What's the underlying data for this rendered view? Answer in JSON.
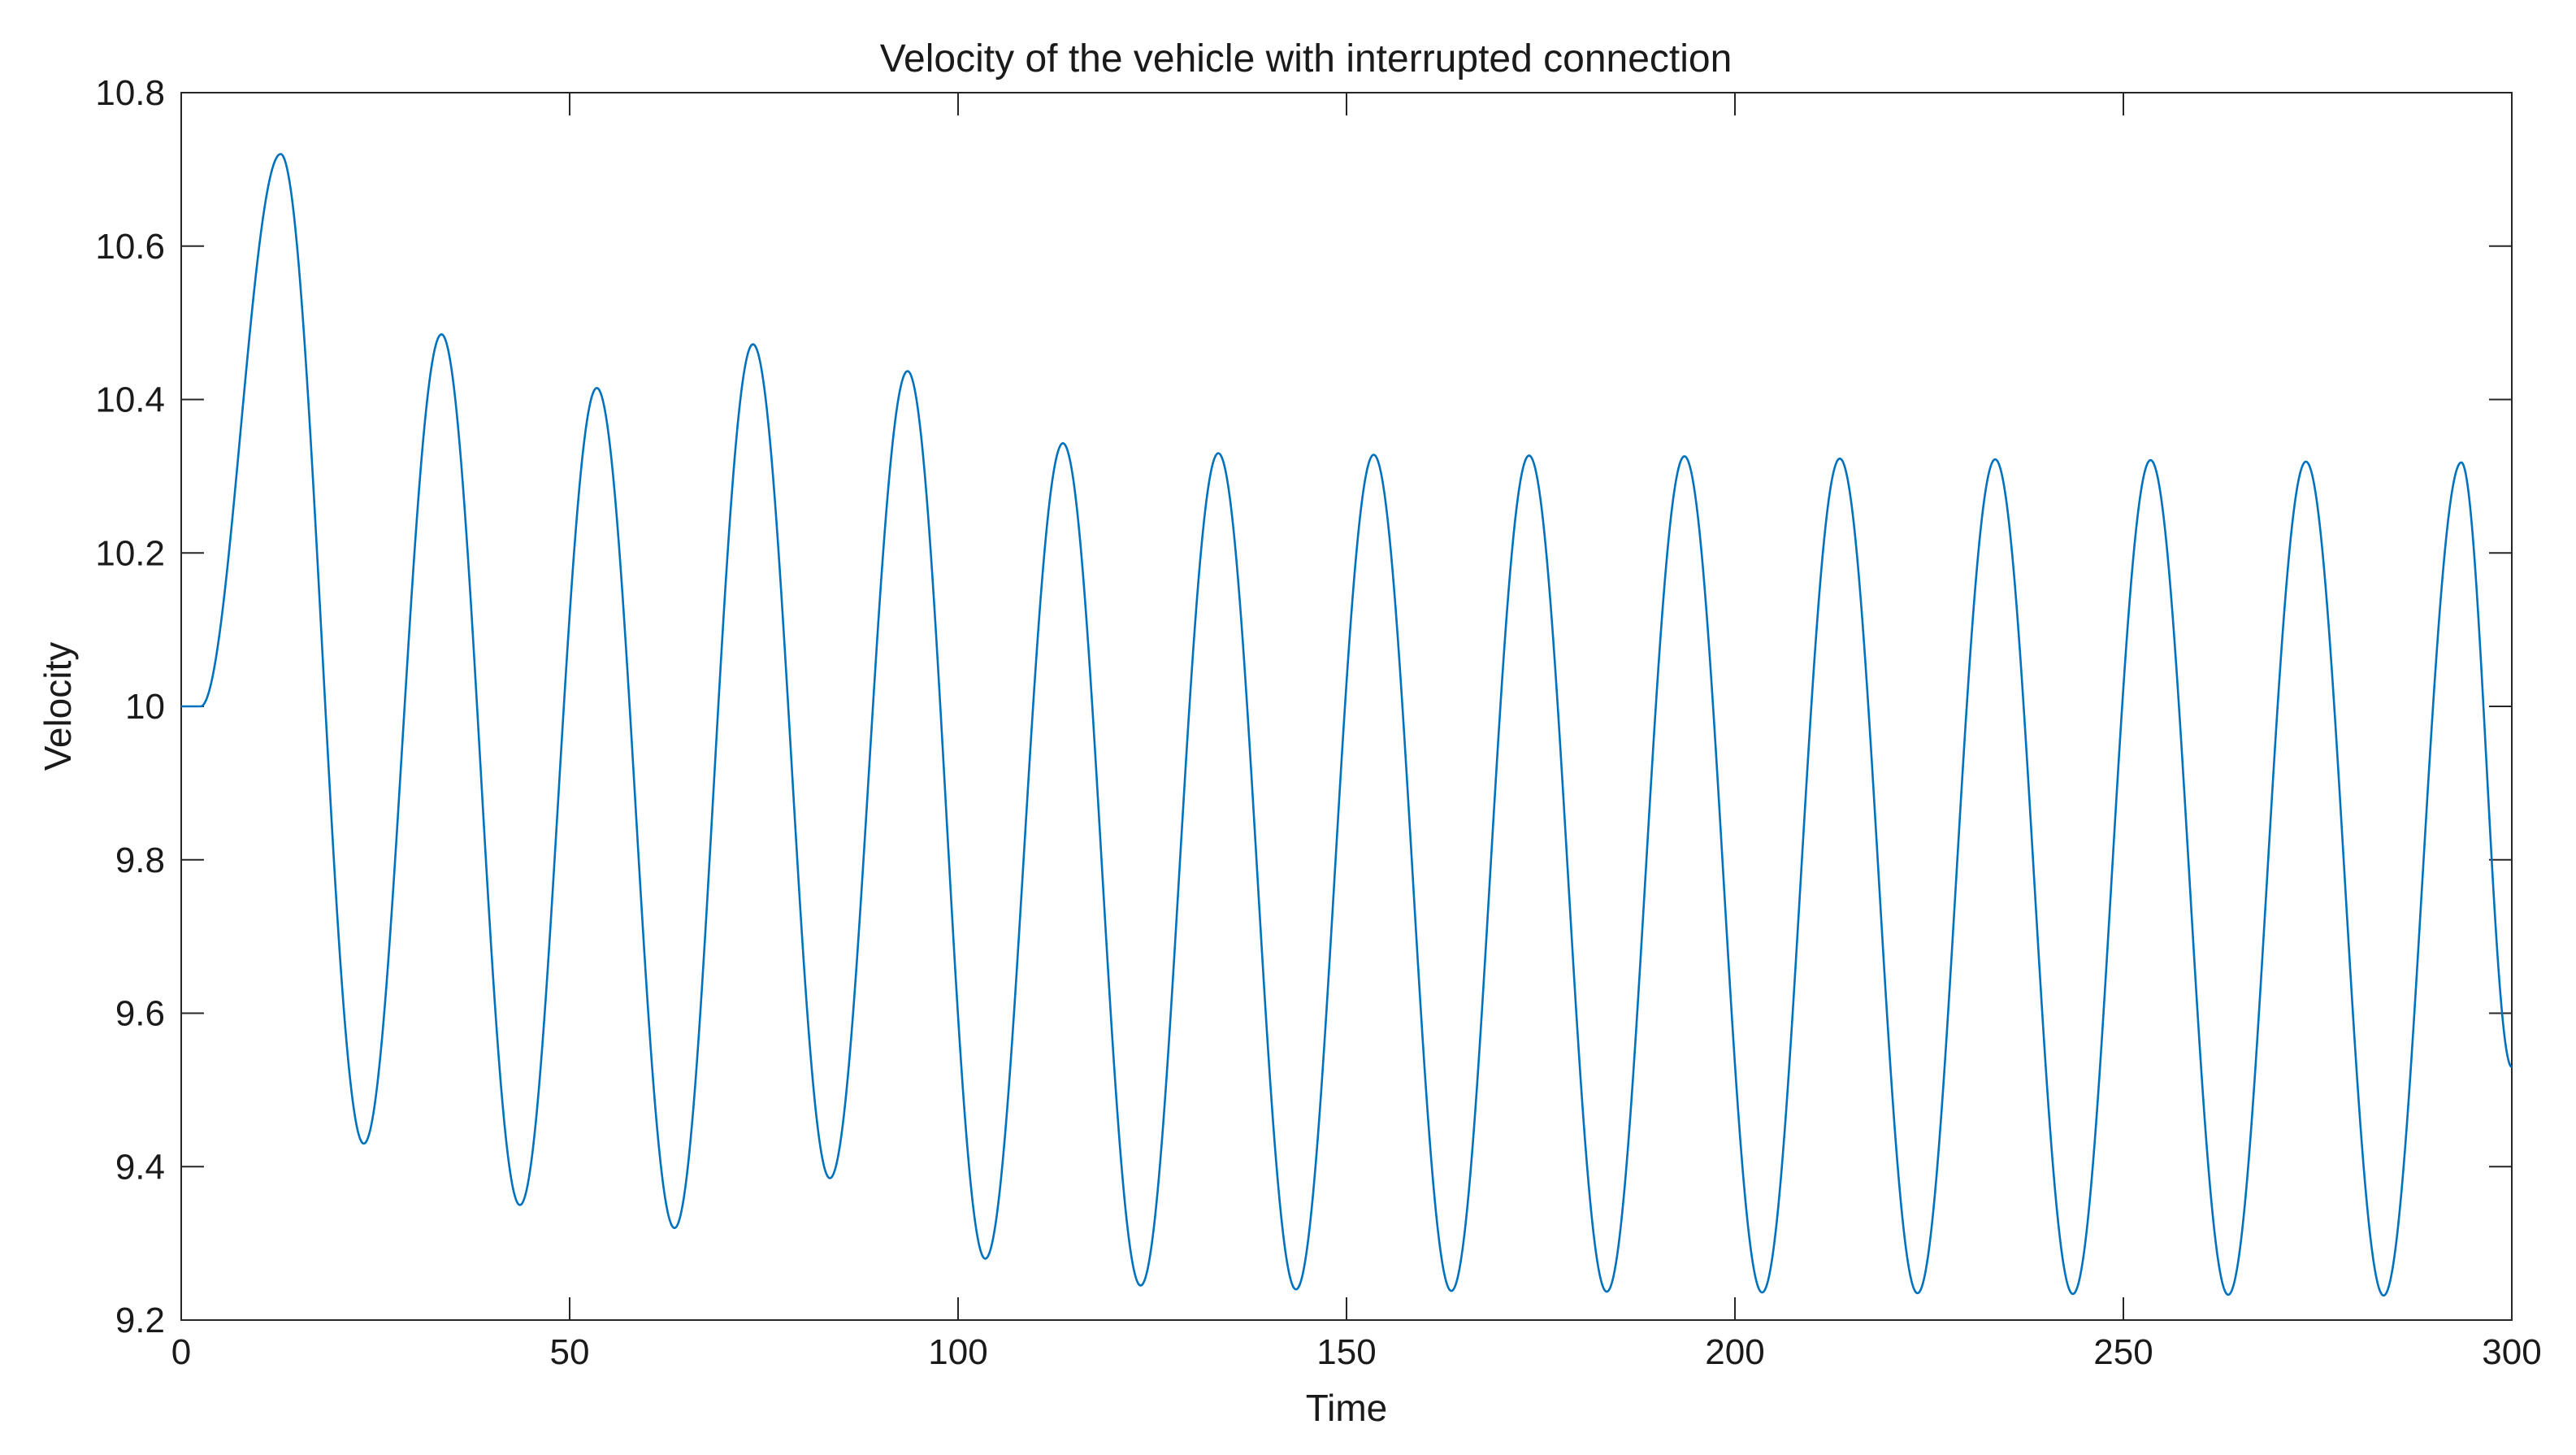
{
  "chart_data": {
    "type": "line",
    "title": "Velocity of the vehicle with interrupted connection",
    "xlabel": "Time",
    "ylabel": "Velocity",
    "xlim": [
      0,
      300
    ],
    "ylim": [
      9.2,
      10.8
    ],
    "xticks": [
      0,
      50,
      100,
      150,
      200,
      250,
      300
    ],
    "xtick_labels": [
      "0",
      "50",
      "100",
      "150",
      "200",
      "250",
      "300"
    ],
    "yticks": [
      9.2,
      9.4,
      9.6,
      9.8,
      10,
      10.2,
      10.4,
      10.6,
      10.8
    ],
    "ytick_labels": [
      "9.2",
      "9.4",
      "9.6",
      "9.8",
      "10",
      "10.2",
      "10.4",
      "10.6",
      "10.8"
    ],
    "grid": false,
    "legend": "none",
    "colors": {
      "series": "#0072BD",
      "axes": "#262626",
      "background": "#ffffff"
    },
    "series": [
      {
        "x": [
          0,
          2.5,
          12.8,
          23.5,
          33.5,
          43.6,
          53.5,
          63.5,
          73.6,
          83.5,
          93.5,
          103.5,
          113.5,
          123.5,
          133.5,
          143.5,
          153.5,
          163.5,
          173.5,
          183.5,
          193.5,
          203.5,
          213.5,
          223.5,
          233.5,
          243.5,
          253.5,
          263.5,
          273.5,
          283.5,
          293.5,
          300
        ],
        "y": [
          10.0,
          10.0,
          10.72,
          9.43,
          10.485,
          9.35,
          10.415,
          9.32,
          10.472,
          9.385,
          10.437,
          9.28,
          10.343,
          9.245,
          10.33,
          9.24,
          10.328,
          9.238,
          10.327,
          9.237,
          10.326,
          9.236,
          10.323,
          9.235,
          10.322,
          9.234,
          10.321,
          9.233,
          10.319,
          9.232,
          10.318,
          9.53
        ]
      }
    ]
  }
}
